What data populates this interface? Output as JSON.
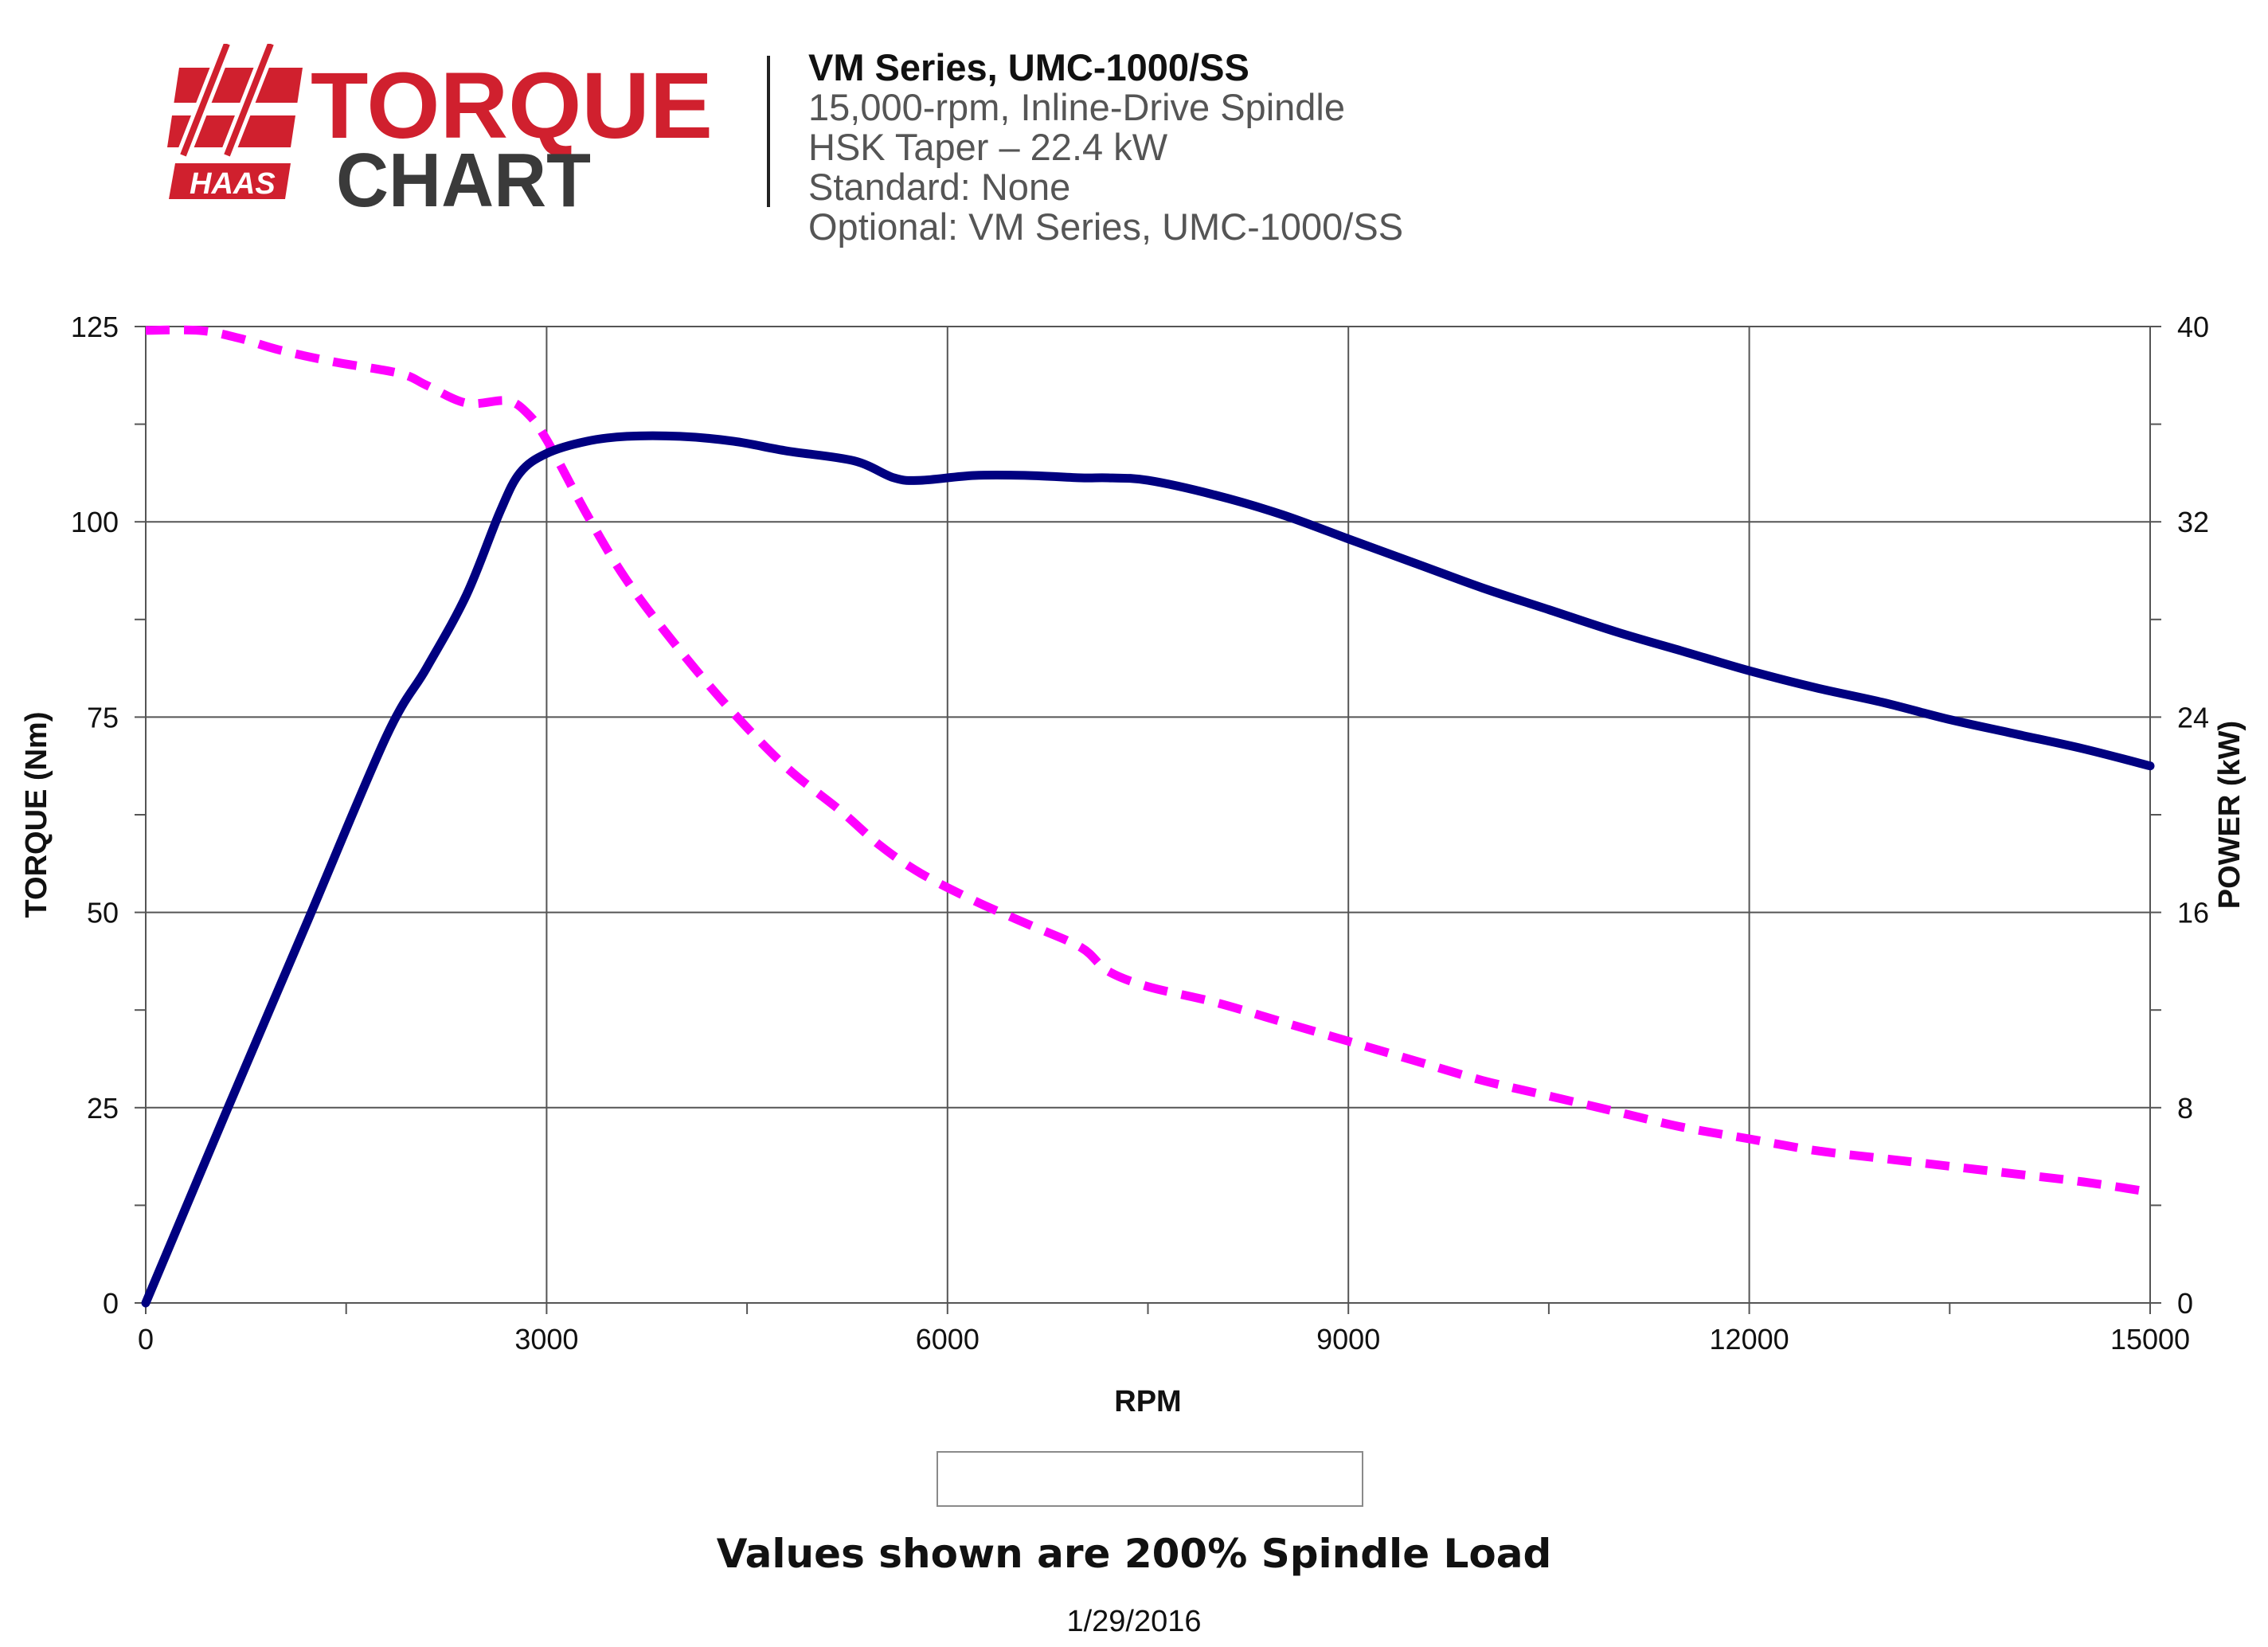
{
  "logo": {
    "brand": "HAAS",
    "word1": "TORQUE",
    "word2": "CHART",
    "icon": "haas-logo-icon",
    "brand_color": "#d0202e"
  },
  "header": {
    "lines": [
      "VM Series, UMC-1000/SS",
      "15,000-rpm, Inline-Drive Spindle",
      "HSK Taper – 22.4 kW",
      "Standard: None",
      "Optional: VM Series, UMC-1000/SS"
    ]
  },
  "note": "Values shown are 200% Spindle Load",
  "date": "1/29/2016",
  "chart_data": {
    "type": "line",
    "xlabel": "RPM",
    "ylabel": "TORQUE (Nm)",
    "y2label": "POWER (kW)",
    "xlim": [
      0,
      15000
    ],
    "ylim": [
      0,
      125
    ],
    "y2lim": [
      0,
      40
    ],
    "xticks": [
      0,
      3000,
      6000,
      9000,
      12000,
      15000
    ],
    "yticks": [
      0,
      25,
      50,
      75,
      100,
      125
    ],
    "y2ticks": [
      0,
      8,
      16,
      24,
      32,
      40
    ],
    "grid": true,
    "legend": "bottom-center",
    "series": [
      {
        "name": "Torque",
        "axis": "left",
        "color": "#ff00ff",
        "style": "dashed",
        "x": [
          0,
          400,
          700,
          1000,
          1400,
          1900,
          2100,
          2400,
          2700,
          2850,
          3000,
          3300,
          3600,
          4000,
          4400,
          4800,
          5200,
          5500,
          5800,
          6200,
          6600,
          7000,
          7200,
          7500,
          8000,
          8500,
          9000,
          9500,
          10000,
          10500,
          11000,
          11500,
          12000,
          12500,
          13000,
          13500,
          14000,
          14500,
          15000
        ],
        "y": [
          124.5,
          124.5,
          123.5,
          122,
          120.5,
          119,
          117.5,
          115.2,
          115.5,
          114,
          110.5,
          101,
          92.5,
          83.5,
          75.5,
          68.5,
          63,
          58.5,
          55,
          51.5,
          48.5,
          45.5,
          42.5,
          40.5,
          38.5,
          36,
          33.5,
          31,
          28.5,
          26.5,
          24.5,
          22.5,
          21,
          19.5,
          18.5,
          17.5,
          16.5,
          15.5,
          14.2
        ]
      },
      {
        "name": "Power",
        "axis": "right",
        "color": "#000080",
        "style": "solid",
        "x": [
          0,
          600,
          1200,
          1800,
          2100,
          2400,
          2650,
          2800,
          3000,
          3300,
          3600,
          4000,
          4400,
          4800,
          5300,
          5600,
          5800,
          6200,
          6600,
          7000,
          7200,
          7500,
          8000,
          8500,
          9000,
          9500,
          10000,
          10500,
          11000,
          11500,
          12000,
          12500,
          13000,
          13500,
          14000,
          14500,
          15000
        ],
        "y": [
          0,
          7.8,
          15.5,
          23.2,
          26,
          29,
          32.4,
          34,
          34.8,
          35.3,
          35.5,
          35.5,
          35.3,
          34.9,
          34.5,
          33.8,
          33.7,
          33.9,
          33.9,
          33.8,
          33.8,
          33.7,
          33.1,
          32.3,
          31.3,
          30.3,
          29.3,
          28.4,
          27.5,
          26.7,
          25.9,
          25.2,
          24.6,
          23.9,
          23.3,
          22.7,
          22.0
        ]
      }
    ]
  }
}
